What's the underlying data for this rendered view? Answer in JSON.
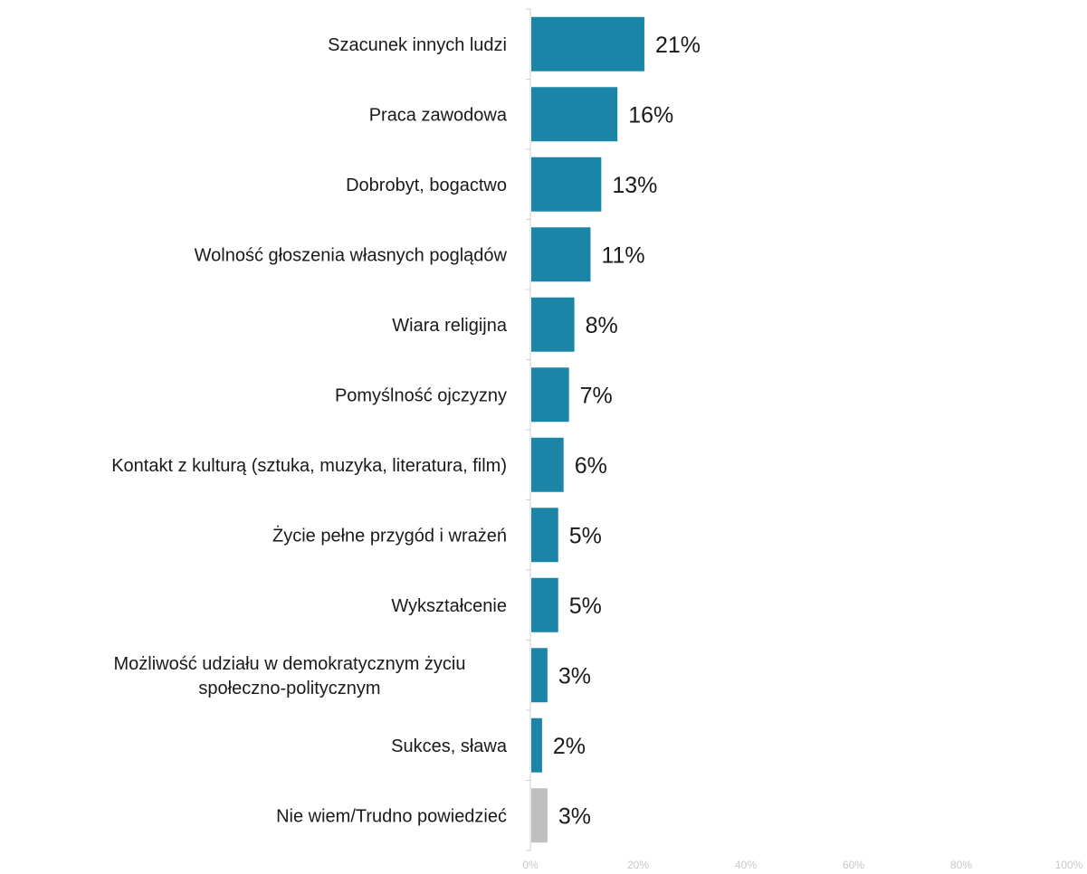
{
  "chart_data": {
    "type": "bar",
    "orientation": "horizontal",
    "title": "",
    "xlabel": "",
    "ylabel": "",
    "xlim": [
      0,
      100
    ],
    "grid": false,
    "legend": "none",
    "categories": [
      [
        "Szacunek innych ludzi"
      ],
      [
        "Praca zawodowa"
      ],
      [
        "Dobrobyt, bogactwo"
      ],
      [
        "Wolność głoszenia własnych poglądów"
      ],
      [
        "Wiara religijna"
      ],
      [
        "Pomyślność ojczyzny"
      ],
      [
        "Kontakt z kulturą (sztuka, muzyka, literatura, film)"
      ],
      [
        "Życie pełne przygód i wrażeń"
      ],
      [
        "Wykształcenie"
      ],
      [
        "Możliwość udziału w demokratycznym życiu",
        "społeczno-politycznym"
      ],
      [
        "Sukces, sława"
      ],
      [
        "Nie wiem/Trudno powiedzieć"
      ]
    ],
    "values": [
      21,
      16,
      13,
      11,
      8,
      7,
      6,
      5,
      5,
      3,
      2,
      3
    ],
    "value_labels": [
      "21%",
      "16%",
      "13%",
      "11%",
      "8%",
      "7%",
      "6%",
      "5%",
      "5%",
      "3%",
      "2%",
      "3%"
    ],
    "x_ticks": [
      "0%",
      "20%",
      "40%",
      "60%",
      "80%",
      "100%"
    ],
    "colors": {
      "main": "#1a85a6",
      "no_answer": "#bfbfbf",
      "axis": "#d0d0d0",
      "tick_text": "#c8c8c8"
    },
    "bar_colors": [
      "main",
      "main",
      "main",
      "main",
      "main",
      "main",
      "main",
      "main",
      "main",
      "main",
      "main",
      "no_answer"
    ]
  }
}
